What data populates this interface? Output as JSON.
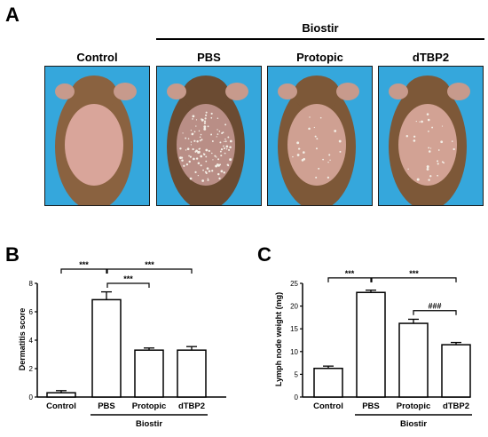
{
  "panel_a": {
    "letter": "A",
    "group_label": "Biostir",
    "photos": [
      {
        "label": "Control",
        "background": "#35a7dc",
        "skin": "#d9a59a",
        "fur": "#8a6240",
        "lesions": 0
      },
      {
        "label": "PBS",
        "background": "#35a7dc",
        "skin": "#b98e86",
        "fur": "#6b4b32",
        "lesions": 120
      },
      {
        "label": "Protopic",
        "background": "#35a7dc",
        "skin": "#cfa092",
        "fur": "#7d5838",
        "lesions": 25
      },
      {
        "label": "dTBP2",
        "background": "#35a7dc",
        "skin": "#d2a294",
        "fur": "#7d5838",
        "lesions": 30
      }
    ]
  },
  "chart_data": [
    {
      "panel": "B",
      "type": "bar",
      "categories": [
        "Control",
        "PBS",
        "Protopic",
        "dTBP2"
      ],
      "values": [
        0.3,
        6.85,
        3.3,
        3.3
      ],
      "errors": [
        0.15,
        0.55,
        0.15,
        0.25
      ],
      "ylabel": "Dermatitis score",
      "ylim": [
        0,
        8
      ],
      "yticks": [
        "0",
        "2",
        "4",
        "6",
        "8"
      ],
      "yticks_values": [
        0,
        2,
        4,
        6,
        8
      ],
      "group_label": "Biostir",
      "group_categories": [
        1,
        3
      ],
      "significance": [
        {
          "from": 0,
          "to": 1,
          "label": "***",
          "level": 9.0
        },
        {
          "from": 1,
          "to": 3,
          "label": "***",
          "level": 9.0
        },
        {
          "from": 1,
          "to": 2,
          "label": "***",
          "level": 8.0
        }
      ],
      "bar_fill": "#ffffff",
      "grid": false
    },
    {
      "panel": "C",
      "type": "bar",
      "categories": [
        "Control",
        "PBS",
        "Protopic",
        "dTBP2"
      ],
      "values": [
        6.3,
        23.0,
        16.2,
        11.5
      ],
      "errors": [
        0.5,
        0.5,
        0.9,
        0.5
      ],
      "ylabel": "Lymph node weight (mg)",
      "ylim": [
        0,
        25
      ],
      "yticks": [
        "0",
        "5",
        "10",
        "15",
        "20",
        "25"
      ],
      "yticks_values": [
        0,
        5,
        10,
        15,
        20,
        25
      ],
      "group_label": "Biostir",
      "group_categories": [
        1,
        3
      ],
      "significance": [
        {
          "from": 0,
          "to": 1,
          "label": "***",
          "level": 26.2
        },
        {
          "from": 1,
          "to": 3,
          "label": "***",
          "level": 26.2
        },
        {
          "from": 2,
          "to": 3,
          "label": "###",
          "level": 19.0
        }
      ],
      "bar_fill": "#ffffff",
      "grid": false
    }
  ]
}
